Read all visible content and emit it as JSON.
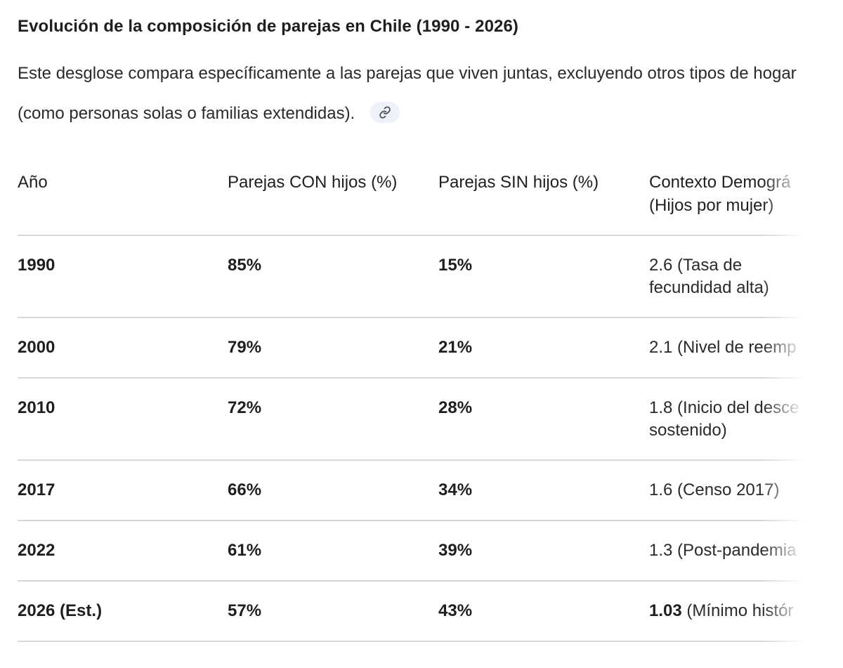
{
  "heading": "Evolución de la composición de parejas en Chile (1990 - 2026)",
  "intro": "Este desglose compara específicamente a las parejas que viven juntas, excluyendo otros tipos de hogar (como personas solas o familias extendidas).",
  "link_icon": "link-icon",
  "table": {
    "headers": {
      "year": "Año",
      "with_children": "Parejas CON hijos (%)",
      "without_children": "Parejas SIN hijos (%)",
      "context_line1": "Contexto Demográ",
      "context_line2": "(Hijos por mujer)"
    },
    "rows": [
      {
        "year": "1990",
        "with_children": "85%",
        "without_children": "15%",
        "context_line1": "2.6 (Tasa de",
        "context_line2": "fecundidad alta)"
      },
      {
        "year": "2000",
        "with_children": "79%",
        "without_children": "21%",
        "context_line1": "2.1 (Nivel de reemp",
        "context_line2": ""
      },
      {
        "year": "2010",
        "with_children": "72%",
        "without_children": "28%",
        "context_line1": "1.8 (Inicio del desce",
        "context_line2": "sostenido)"
      },
      {
        "year": "2017",
        "with_children": "66%",
        "without_children": "34%",
        "context_line1": "1.6 (Censo 2017)",
        "context_line2": ""
      },
      {
        "year": "2022",
        "with_children": "61%",
        "without_children": "39%",
        "context_line1": "1.3 (Post-pandemia",
        "context_line2": ""
      },
      {
        "year": "2026 (Est.)",
        "with_children": "57%",
        "without_children": "43%",
        "context_value": "1.03",
        "context_rest": " (Mínimo histór"
      }
    ]
  }
}
